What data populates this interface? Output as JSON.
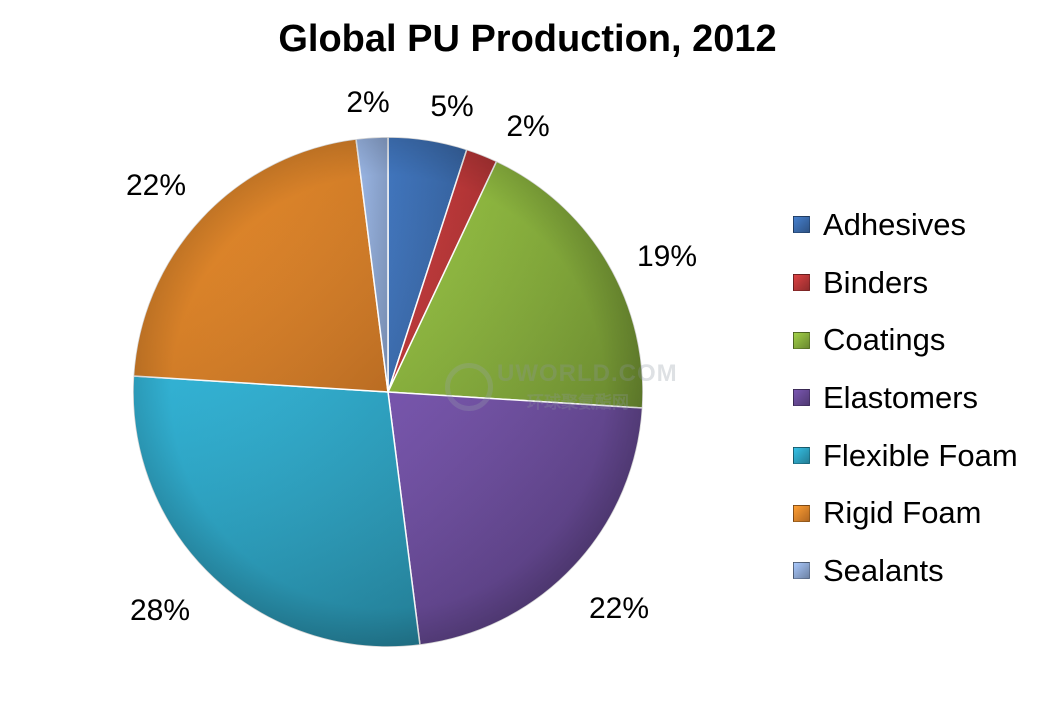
{
  "chart_data": {
    "type": "pie",
    "title": "Global PU Production, 2012",
    "slices": [
      {
        "name": "Adhesives",
        "value": 5,
        "label": "5%",
        "color": "#3d6fb3"
      },
      {
        "name": "Binders",
        "value": 2,
        "label": "2%",
        "color": "#c0393a"
      },
      {
        "name": "Coatings",
        "value": 19,
        "label": "19%",
        "color": "#8db63f"
      },
      {
        "name": "Elastomers",
        "value": 22,
        "label": "22%",
        "color": "#6a4c9a"
      },
      {
        "name": "Flexible Foam",
        "value": 28,
        "label": "28%",
        "color": "#2fa8c8"
      },
      {
        "name": "Rigid Foam",
        "value": 22,
        "label": "22%",
        "color": "#ee8a2c"
      },
      {
        "name": "Sealants",
        "value": 2,
        "label": "2%",
        "color": "#93aedb"
      }
    ],
    "legend_position": "right",
    "start_angle": "12 o'clock, clockwise"
  },
  "watermark": {
    "line1": "UWORLD.COM",
    "line2": "环球聚氨酯网"
  }
}
